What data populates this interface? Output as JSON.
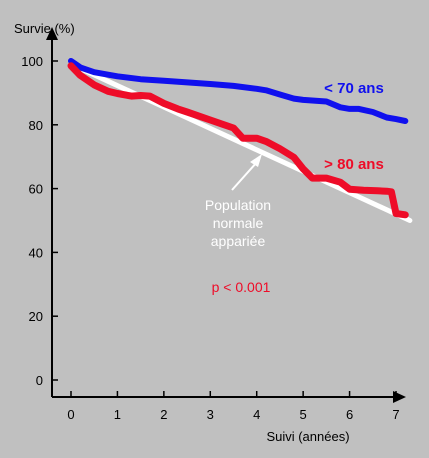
{
  "chart_data": {
    "type": "line",
    "ylabel": "Survie (%)",
    "xlabel": "Suivi (années)",
    "xlim": [
      0,
      7
    ],
    "ylim": [
      0,
      100
    ],
    "xticks": [
      "0",
      "1",
      "2",
      "3",
      "4",
      "5",
      "6",
      "7"
    ],
    "yticks": [
      "0",
      "20",
      "40",
      "60",
      "80",
      "100"
    ],
    "grid": false,
    "series": [
      {
        "name": "< 70 ans",
        "color": "#1010ee",
        "x": [
          0,
          0.2,
          0.5,
          0.8,
          1.0,
          1.5,
          2.0,
          2.5,
          3.0,
          3.5,
          4.0,
          4.2,
          4.5,
          4.8,
          5.0,
          5.5,
          5.8,
          6.0,
          6.2,
          6.5,
          6.8,
          7.0,
          7.2
        ],
        "y": [
          100,
          98,
          96.5,
          95.7,
          95.2,
          94.3,
          93.8,
          93.3,
          92.8,
          92.2,
          91.3,
          90.8,
          89.5,
          88.2,
          87.8,
          87.3,
          85.5,
          85.0,
          85.0,
          84.0,
          82.3,
          81.8,
          81.2
        ]
      },
      {
        "name": "> 80 ans",
        "color": "#ee0c28",
        "x": [
          0,
          0.2,
          0.5,
          0.8,
          1.0,
          1.3,
          1.5,
          1.7,
          2.0,
          2.3,
          2.5,
          3.0,
          3.5,
          3.7,
          4.0,
          4.2,
          4.5,
          4.8,
          5.0,
          5.2,
          5.5,
          5.8,
          6.0,
          6.3,
          6.6,
          6.8,
          6.9,
          7.0,
          7.2
        ],
        "y": [
          98.5,
          95.5,
          92.5,
          90.5,
          89.8,
          89.0,
          89.2,
          89.0,
          86.7,
          85.0,
          84.0,
          81.5,
          79.0,
          75.8,
          75.8,
          74.8,
          72.5,
          69.8,
          66.2,
          63.3,
          63.3,
          62.0,
          59.8,
          59.5,
          59.3,
          59.2,
          59.0,
          52.2,
          51.8
        ]
      },
      {
        "name": "Population normale appariée",
        "color": "#ffffff",
        "x": [
          0,
          7.3
        ],
        "y": [
          99,
          50
        ]
      }
    ],
    "annotations": {
      "under70": "< 70 ans",
      "over80": "> 80 ans",
      "normal_line1": "Population",
      "normal_line2": "normale",
      "normal_line3": "appariée",
      "pvalue": "p < 0.001"
    }
  }
}
